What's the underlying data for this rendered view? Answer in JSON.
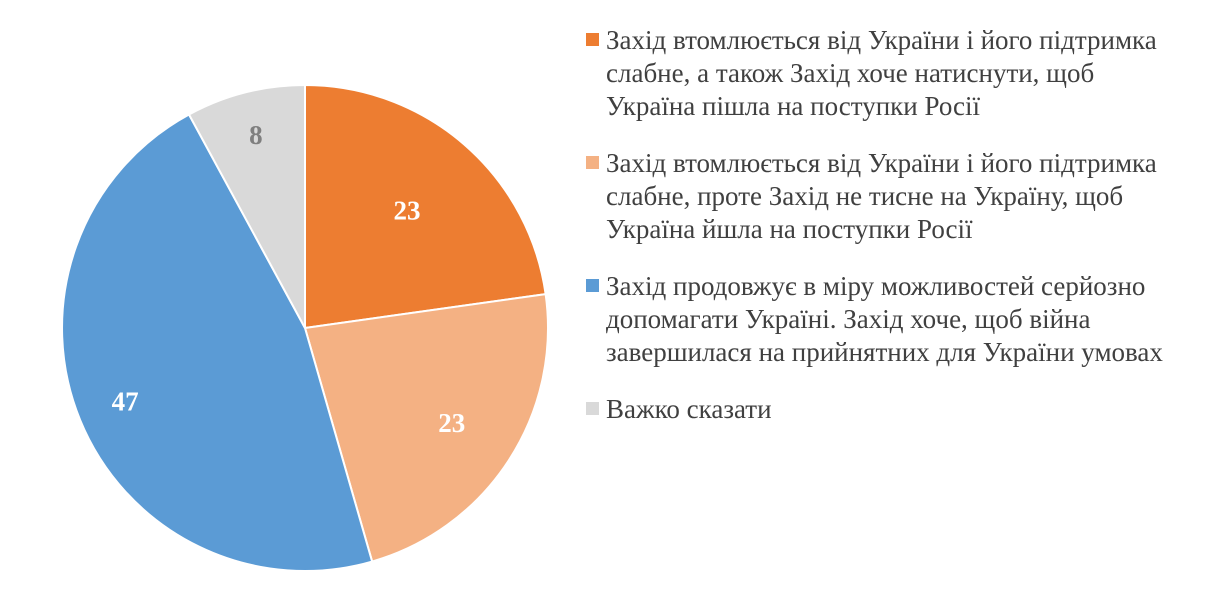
{
  "chart_data": {
    "type": "pie",
    "title": "",
    "categories": [
      "Захід втомлюється від України і його підтримка слабне, а також Захід хоче натиснути, щоб Україна пішла на поступки Росії",
      "Захід втомлюється від України і його підтримка слабне, проте Захід не тисне на Україну, щоб Україна йшла на поступки Росії",
      "Захід продовжує в міру можливостей серйозно допомагати Україні. Захід хоче, щоб війна завершилася на прийнятних для України умовах",
      "Важко сказати"
    ],
    "values": [
      23,
      23,
      47,
      8
    ],
    "data_labels": [
      "23",
      "23",
      "47",
      "8"
    ],
    "colors": [
      "#ed7d31",
      "#f4b183",
      "#5b9bd5",
      "#d9d9d9"
    ],
    "label_colors": [
      "#ffffff",
      "#ffffff",
      "#ffffff",
      "#7f7f7f"
    ],
    "start_angle_deg": 0,
    "direction": "clockwise",
    "legend_position": "right"
  }
}
